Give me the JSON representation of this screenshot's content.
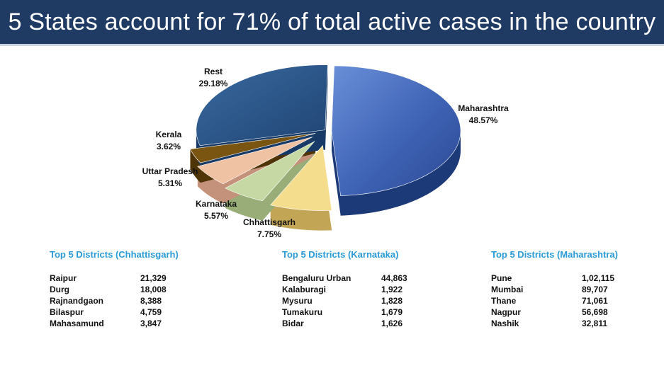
{
  "header": {
    "title": "5 States account for 71% of total active cases in the country"
  },
  "colors": {
    "header_bg": "#1f3a63",
    "section_title": "#2a9bd6"
  },
  "chart_data": {
    "type": "pie",
    "title": "5 States account for 71% of total active cases in the country",
    "slices": [
      {
        "label": "Maharashtra",
        "value": 48.57,
        "display": "48.57%",
        "color": "#3f63b5"
      },
      {
        "label": "Chhattisgarh",
        "value": 7.75,
        "display": "7.75%",
        "color": "#f5dd8e"
      },
      {
        "label": "Karnataka",
        "value": 5.57,
        "display": "5.57%",
        "color": "#c6d9a4"
      },
      {
        "label": "Uttar Pradesh",
        "value": 5.31,
        "display": "5.31%",
        "color": "#f0c2a4"
      },
      {
        "label": "Kerala",
        "value": 3.62,
        "display": "3.62%",
        "color": "#7a5512"
      },
      {
        "label": "Rest",
        "value": 29.18,
        "display": "29.18%",
        "color": "#2b5485"
      }
    ]
  },
  "tables": [
    {
      "title": "Top 5 Districts (Chhattisgarh)",
      "rows": [
        {
          "district": "Raipur",
          "cases": "21,329"
        },
        {
          "district": "Durg",
          "cases": "18,008"
        },
        {
          "district": "Rajnandgaon",
          "cases": "8,388"
        },
        {
          "district": "Bilaspur",
          "cases": "4,759"
        },
        {
          "district": "Mahasamund",
          "cases": "3,847"
        }
      ]
    },
    {
      "title": "Top 5 Districts (Karnataka)",
      "rows": [
        {
          "district": "Bengaluru  Urban",
          "cases": "44,863"
        },
        {
          "district": "Kalaburagi",
          "cases": "1,922"
        },
        {
          "district": "Mysuru",
          "cases": "1,828"
        },
        {
          "district": "Tumakuru",
          "cases": "1,679"
        },
        {
          "district": "Bidar",
          "cases": "1,626"
        }
      ]
    },
    {
      "title": "Top 5 Districts (Maharashtra)",
      "rows": [
        {
          "district": "Pune",
          "cases": "1,02,115"
        },
        {
          "district": "Mumbai",
          "cases": "89,707"
        },
        {
          "district": "Thane",
          "cases": "71,061"
        },
        {
          "district": "Nagpur",
          "cases": "56,698"
        },
        {
          "district": "Nashik",
          "cases": "32,811"
        }
      ]
    }
  ]
}
